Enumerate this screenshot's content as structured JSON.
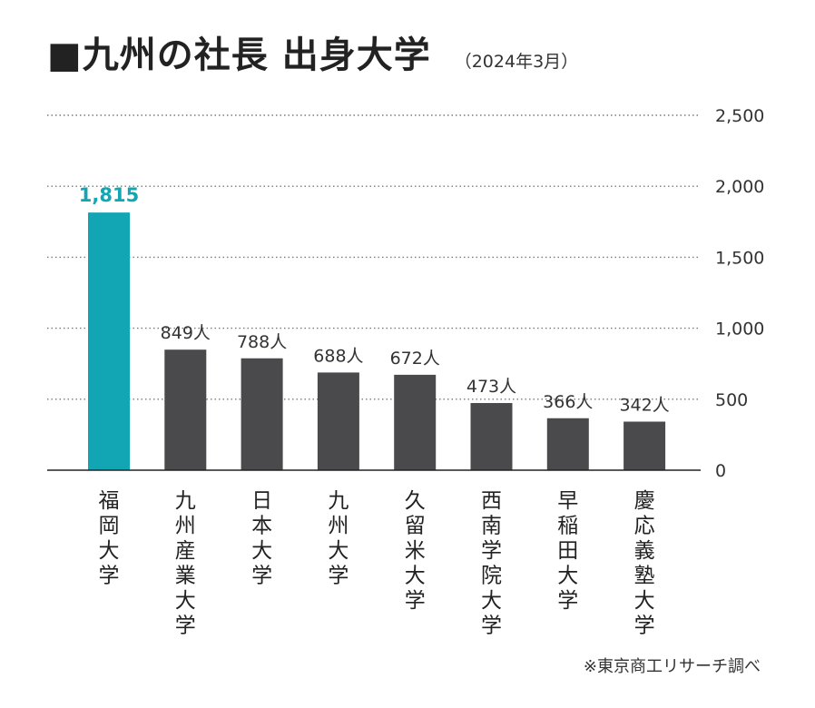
{
  "header": {
    "title": "■九州の社長 出身大学",
    "subtitle": "（2024年3月）"
  },
  "footer": {
    "source": "※東京商工リサーチ調べ"
  },
  "colors": {
    "highlight": "#12a5b4",
    "bar": "#4a4a4c",
    "grid": "#7a7a7a",
    "axis": "#222222"
  },
  "chart_data": {
    "type": "bar",
    "title": "■九州の社長 出身大学",
    "subtitle": "（2024年3月）",
    "categories": [
      "福岡大学",
      "九州産業大学",
      "日本大学",
      "九州大学",
      "久留米大学",
      "西南学院大学",
      "早稲田大学",
      "慶応義塾大学"
    ],
    "values": [
      1815,
      849,
      788,
      688,
      672,
      473,
      366,
      342
    ],
    "value_labels": [
      "1,815",
      "849人",
      "788人",
      "688人",
      "672人",
      "473人",
      "366人",
      "342人"
    ],
    "highlight_index": 0,
    "ylim": [
      0,
      2500
    ],
    "yticks": [
      0,
      500,
      1000,
      1500,
      2000,
      2500
    ],
    "ytick_labels": [
      "0",
      "500",
      "1,000",
      "1,500",
      "2,000",
      "2,500"
    ],
    "y_axis_side": "right",
    "grid": "dotted horizontal",
    "xlabel": "",
    "ylabel": ""
  }
}
